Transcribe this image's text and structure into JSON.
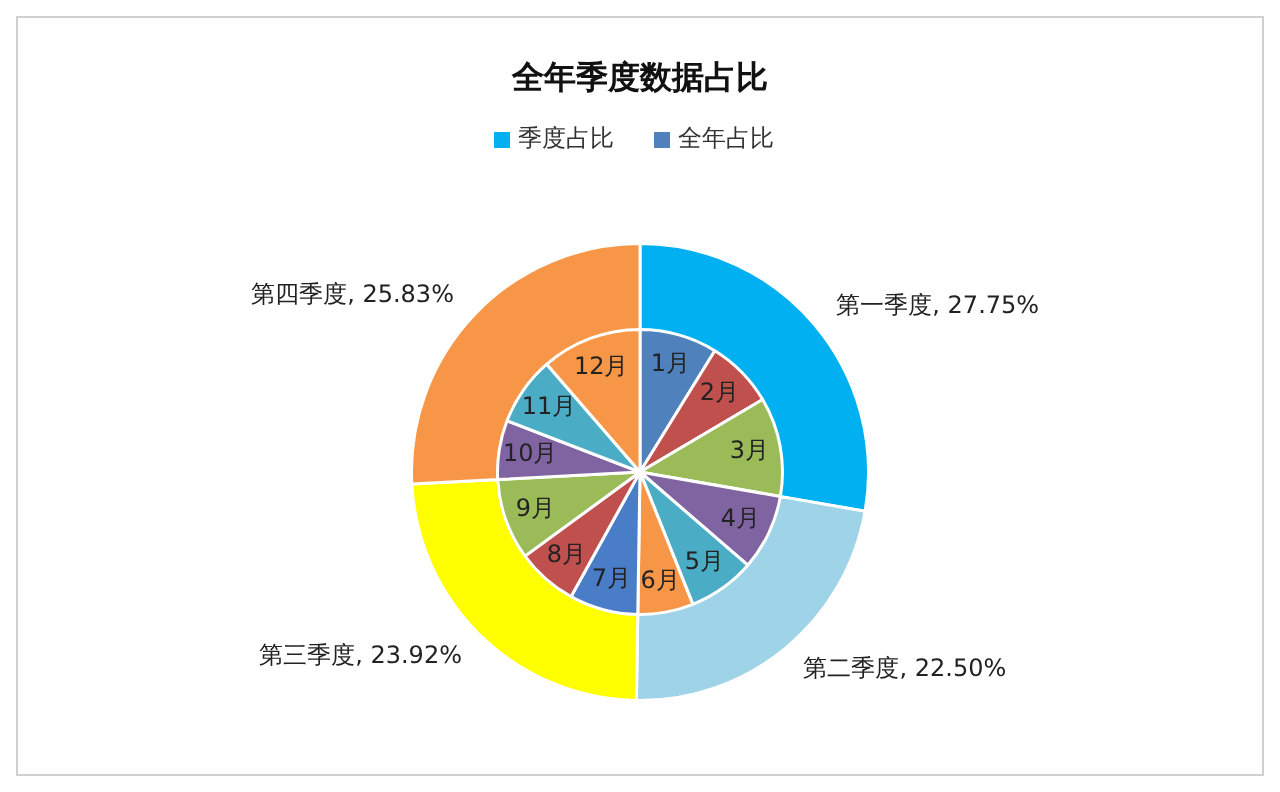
{
  "chart_data": [
    {
      "type": "donut",
      "title": "全年季度数据占比",
      "legend": "top",
      "categories": [
        "第一季度",
        "第二季度",
        "第三季度",
        "第四季度"
      ],
      "colors": [
        "#00b0f0",
        "#9fd3e8",
        "#ffff00",
        "#f79646"
      ],
      "series": [
        {
          "name": "季度占比",
          "color": "#00b0f0",
          "values": [
            27.75,
            22.5,
            23.92,
            25.83
          ],
          "value_labels": [
            "27.75%",
            "22.50%",
            "23.92%",
            "25.83%"
          ]
        }
      ]
    },
    {
      "type": "pie",
      "legend": "top",
      "categories": [
        "1月",
        "2月",
        "3月",
        "4月",
        "5月",
        "6月",
        "7月",
        "8月",
        "9月",
        "10月",
        "11月",
        "12月"
      ],
      "colors": [
        "#4f81bd",
        "#c0504d",
        "#9bbb59",
        "#8064a2",
        "#4bacc6",
        "#f79646",
        "#4a7dc8",
        "#c0504d",
        "#9bbb59",
        "#8064a2",
        "#4bacc6",
        "#f79646"
      ],
      "series": [
        {
          "name": "全年占比",
          "color": "#4f81bd",
          "values": [
            8.8,
            7.7,
            11.25,
            8.6,
            7.6,
            6.3,
            7.8,
            6.9,
            9.2,
            6.7,
            7.8,
            11.35
          ]
        }
      ]
    }
  ]
}
